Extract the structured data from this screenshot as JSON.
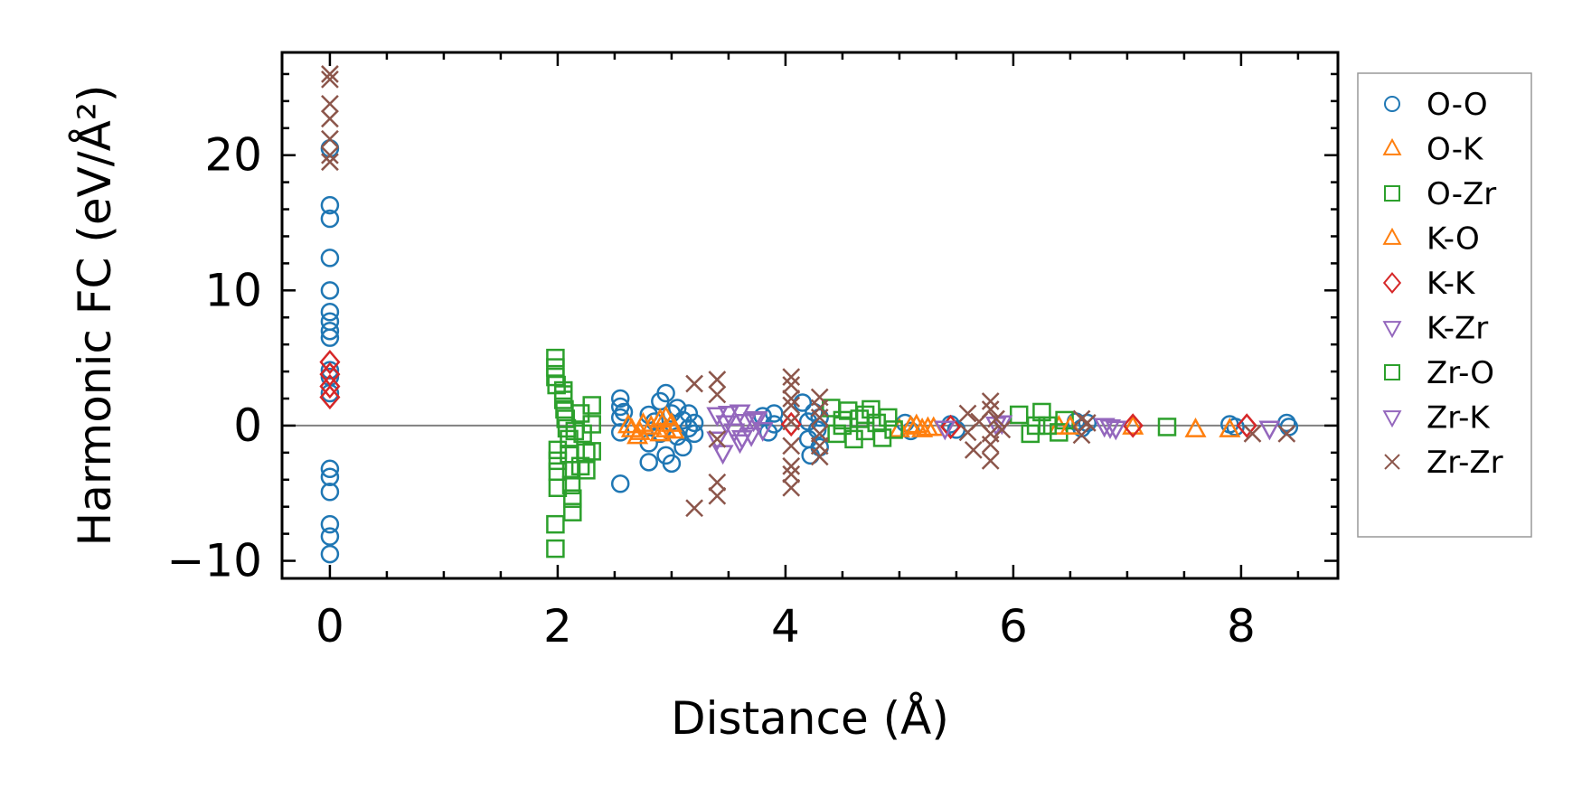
{
  "chart_data": {
    "type": "scatter",
    "title": "",
    "xlabel": "Distance (Å)",
    "ylabel": "Harmonic FC (eV/Å²)",
    "xlim": [
      -0.42,
      8.85
    ],
    "ylim": [
      -11.3,
      27.6
    ],
    "xticks": [
      0,
      2,
      4,
      6,
      8
    ],
    "xtick_labels": [
      "0",
      "2",
      "4",
      "6",
      "8"
    ],
    "yticks": [
      -10,
      0,
      10,
      20
    ],
    "ytick_labels": [
      "−10",
      "0",
      "10",
      "20"
    ],
    "x_minor_step": 0.5,
    "y_minor_step": 2,
    "zero_line": 0,
    "grid": false,
    "legend_position": "outside-right",
    "series": [
      {
        "name": "O-O",
        "marker": "circle",
        "color": "#1f77b4",
        "points": [
          [
            0,
            20.5
          ],
          [
            0,
            16.3
          ],
          [
            0,
            15.3
          ],
          [
            0,
            12.4
          ],
          [
            0,
            10.0
          ],
          [
            0,
            8.4
          ],
          [
            0,
            7.7
          ],
          [
            0,
            7.0
          ],
          [
            0,
            6.5
          ],
          [
            0,
            4.1
          ],
          [
            0,
            3.6
          ],
          [
            0,
            2.4
          ],
          [
            0,
            -3.2
          ],
          [
            0,
            -3.8
          ],
          [
            0,
            -4.9
          ],
          [
            0,
            -7.3
          ],
          [
            0,
            -8.2
          ],
          [
            0,
            -9.5
          ],
          [
            2.55,
            2.0
          ],
          [
            2.55,
            1.4
          ],
          [
            2.55,
            0.6
          ],
          [
            2.55,
            -0.5
          ],
          [
            2.55,
            -4.3
          ],
          [
            2.58,
            1.0
          ],
          [
            2.8,
            0.8
          ],
          [
            2.8,
            -1.3
          ],
          [
            2.8,
            -2.7
          ],
          [
            2.85,
            0.3
          ],
          [
            2.9,
            1.8
          ],
          [
            2.9,
            -0.6
          ],
          [
            2.95,
            2.4
          ],
          [
            2.95,
            -2.2
          ],
          [
            3.0,
            -2.8
          ],
          [
            3.0,
            0.9
          ],
          [
            3.05,
            1.3
          ],
          [
            3.05,
            -0.8
          ],
          [
            3.1,
            0.4
          ],
          [
            3.1,
            -1.6
          ],
          [
            3.15,
            0.9
          ],
          [
            3.15,
            -0.2
          ],
          [
            3.2,
            0.2
          ],
          [
            3.2,
            -0.6
          ],
          [
            3.8,
            0.7
          ],
          [
            3.85,
            -0.5
          ],
          [
            3.9,
            0.9
          ],
          [
            3.9,
            0.1
          ],
          [
            4.15,
            1.7
          ],
          [
            4.2,
            0.3
          ],
          [
            4.2,
            -1.0
          ],
          [
            4.22,
            -2.2
          ],
          [
            4.25,
            1.0
          ],
          [
            4.28,
            -0.3
          ],
          [
            4.3,
            0.6
          ],
          [
            4.3,
            -1.6
          ],
          [
            5.05,
            0.2
          ],
          [
            5.1,
            -0.4
          ],
          [
            5.45,
            0.1
          ],
          [
            5.5,
            -0.3
          ],
          [
            6.55,
            0.3
          ],
          [
            6.6,
            -0.2
          ],
          [
            6.65,
            0.2
          ],
          [
            7.9,
            0.1
          ],
          [
            7.95,
            -0.1
          ],
          [
            8.4,
            0.2
          ],
          [
            8.42,
            -0.1
          ]
        ]
      },
      {
        "name": "O-K",
        "marker": "triangle-up",
        "color": "#ff7f0e",
        "points": [
          [
            2.65,
            -0.3
          ],
          [
            2.7,
            -0.8
          ],
          [
            2.75,
            0.1
          ],
          [
            2.9,
            0.4
          ],
          [
            2.9,
            -0.6
          ],
          [
            2.95,
            0.6
          ],
          [
            2.95,
            -0.3
          ],
          [
            3.0,
            0.1
          ],
          [
            5.0,
            -0.3
          ],
          [
            5.1,
            -0.1
          ],
          [
            5.2,
            -0.3
          ],
          [
            5.3,
            -0.2
          ],
          [
            6.4,
            -0.1
          ],
          [
            7.6,
            -0.3
          ],
          [
            7.9,
            -0.3
          ]
        ]
      },
      {
        "name": "O-Zr",
        "marker": "square",
        "color": "#2ca02c",
        "points": [
          [
            1.98,
            5.0
          ],
          [
            1.98,
            4.3
          ],
          [
            1.98,
            3.6
          ],
          [
            1.99,
            3.0
          ],
          [
            2.0,
            -1.8
          ],
          [
            2.0,
            -2.6
          ],
          [
            2.0,
            -3.4
          ],
          [
            2.0,
            -4.6
          ],
          [
            1.98,
            -7.3
          ],
          [
            1.98,
            -9.1
          ],
          [
            2.05,
            2.6
          ],
          [
            2.05,
            1.9
          ],
          [
            2.06,
            1.2
          ],
          [
            2.07,
            0.5
          ],
          [
            2.08,
            -0.2
          ],
          [
            2.1,
            -1.0
          ],
          [
            2.1,
            -2.1
          ],
          [
            2.12,
            -3.3
          ],
          [
            2.12,
            -4.4
          ],
          [
            2.13,
            -5.4
          ],
          [
            2.13,
            -6.4
          ],
          [
            2.2,
            0.9
          ],
          [
            2.22,
            -0.6
          ],
          [
            2.25,
            -2.0
          ],
          [
            2.25,
            -3.3
          ],
          [
            2.3,
            1.5
          ],
          [
            2.3,
            0.1
          ],
          [
            2.3,
            -1.9
          ],
          [
            4.4,
            1.3
          ],
          [
            4.45,
            -0.6
          ],
          [
            4.5,
            0.4
          ],
          [
            4.55,
            1.1
          ],
          [
            4.6,
            -1.0
          ],
          [
            4.65,
            0.5
          ],
          [
            4.7,
            -0.4
          ],
          [
            4.75,
            1.2
          ],
          [
            4.8,
            0.2
          ],
          [
            4.85,
            -0.9
          ],
          [
            4.9,
            0.6
          ],
          [
            4.95,
            -0.3
          ],
          [
            6.05,
            0.8
          ],
          [
            6.15,
            -0.6
          ],
          [
            6.25,
            1.0
          ],
          [
            6.3,
            0.0
          ],
          [
            6.4,
            -0.5
          ],
          [
            6.45,
            0.4
          ],
          [
            7.35,
            -0.1
          ]
        ]
      },
      {
        "name": "K-O",
        "marker": "triangle-up",
        "color": "#ff7f0e",
        "points": [
          [
            2.62,
            0.0
          ],
          [
            2.72,
            -0.5
          ],
          [
            2.82,
            -0.1
          ],
          [
            3.02,
            -0.4
          ],
          [
            5.15,
            0.0
          ],
          [
            5.25,
            -0.2
          ],
          [
            6.5,
            -0.1
          ],
          [
            7.05,
            -0.1
          ]
        ]
      },
      {
        "name": "K-K",
        "marker": "diamond",
        "color": "#d62728",
        "points": [
          [
            0,
            4.7
          ],
          [
            0,
            3.8
          ],
          [
            0,
            2.9
          ],
          [
            0,
            2.1
          ],
          [
            4.05,
            0.1
          ],
          [
            5.45,
            -0.1
          ],
          [
            7.05,
            0.0
          ],
          [
            8.05,
            0.0
          ]
        ]
      },
      {
        "name": "K-Zr",
        "marker": "triangle-down",
        "color": "#9467bd",
        "points": [
          [
            3.4,
            0.8
          ],
          [
            3.4,
            -1.0
          ],
          [
            3.45,
            -2.0
          ],
          [
            3.5,
            0.9
          ],
          [
            3.55,
            -0.4
          ],
          [
            3.6,
            1.0
          ],
          [
            3.6,
            -1.2
          ],
          [
            3.65,
            0.3
          ],
          [
            3.7,
            -0.7
          ],
          [
            3.75,
            0.5
          ],
          [
            3.8,
            -0.3
          ],
          [
            5.4,
            -0.2
          ],
          [
            5.9,
            0.2
          ],
          [
            6.8,
            0.0
          ],
          [
            6.9,
            -0.2
          ],
          [
            8.25,
            -0.2
          ]
        ]
      },
      {
        "name": "Zr-O",
        "marker": "square",
        "color": "#2ca02c",
        "points": [
          [
            2.05,
            2.3
          ],
          [
            2.15,
            -0.4
          ],
          [
            2.2,
            -3.0
          ],
          [
            4.5,
            0.0
          ],
          [
            4.7,
            0.8
          ],
          [
            6.2,
            0.0
          ]
        ]
      },
      {
        "name": "Zr-K",
        "marker": "triangle-down",
        "color": "#9467bd",
        "points": [
          [
            3.48,
            0.2
          ],
          [
            3.62,
            -0.9
          ],
          [
            3.72,
            0.4
          ],
          [
            5.85,
            0.1
          ],
          [
            6.85,
            -0.1
          ]
        ]
      },
      {
        "name": "Zr-Zr",
        "marker": "x",
        "color": "#8c564b",
        "points": [
          [
            0,
            26.0
          ],
          [
            0,
            25.6
          ],
          [
            0,
            23.8
          ],
          [
            0,
            22.7
          ],
          [
            0,
            21.2
          ],
          [
            0,
            20.0
          ],
          [
            0,
            19.5
          ],
          [
            3.2,
            3.1
          ],
          [
            3.2,
            -6.1
          ],
          [
            3.4,
            3.4
          ],
          [
            3.4,
            2.3
          ],
          [
            3.4,
            -1.0
          ],
          [
            3.4,
            -4.2
          ],
          [
            3.4,
            -5.2
          ],
          [
            4.05,
            3.6
          ],
          [
            4.05,
            3.0
          ],
          [
            4.05,
            2.0
          ],
          [
            4.05,
            1.5
          ],
          [
            4.05,
            0.3
          ],
          [
            4.05,
            -1.5
          ],
          [
            4.05,
            -3.0
          ],
          [
            4.05,
            -3.6
          ],
          [
            4.05,
            -4.6
          ],
          [
            4.3,
            2.1
          ],
          [
            4.3,
            1.3
          ],
          [
            4.3,
            0.6
          ],
          [
            4.3,
            -0.6
          ],
          [
            4.3,
            -1.5
          ],
          [
            4.3,
            -2.3
          ],
          [
            5.6,
            0.9
          ],
          [
            5.6,
            -0.5
          ],
          [
            5.65,
            -1.8
          ],
          [
            5.7,
            0.3
          ],
          [
            5.8,
            1.8
          ],
          [
            5.8,
            1.2
          ],
          [
            5.8,
            -0.6
          ],
          [
            5.8,
            -1.4
          ],
          [
            5.8,
            -2.6
          ],
          [
            5.85,
            0.5
          ],
          [
            5.9,
            -0.3
          ],
          [
            6.6,
            0.5
          ],
          [
            6.6,
            -0.7
          ],
          [
            6.65,
            0.2
          ],
          [
            8.1,
            -0.6
          ],
          [
            8.4,
            -0.6
          ]
        ]
      }
    ]
  }
}
